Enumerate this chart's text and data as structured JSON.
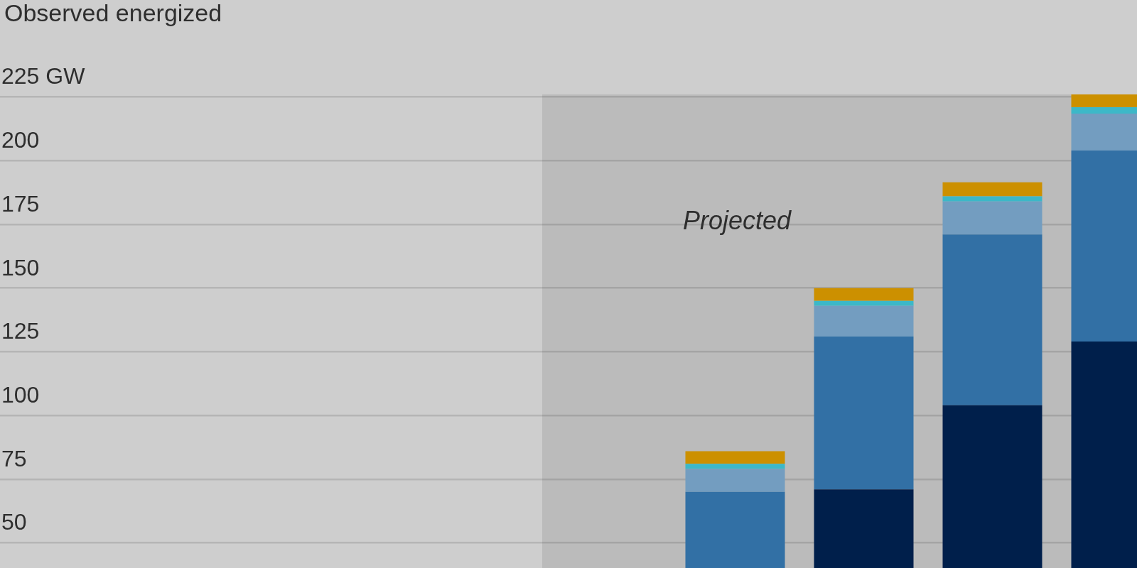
{
  "chart_data": {
    "type": "bar",
    "title": "Observed energized",
    "categories": [
      null,
      null,
      null,
      null,
      null,
      null,
      null,
      null,
      null,
      null
    ],
    "stacked": true,
    "series": [
      {
        "color": "#001f4b",
        "values": [
          null,
          null,
          null,
          null,
          null,
          null,
          null,
          71,
          104,
          129
        ]
      },
      {
        "color": "#3270a5",
        "values": [
          null,
          null,
          null,
          null,
          null,
          null,
          70,
          60,
          67,
          75
        ]
      },
      {
        "color": "#739dc0",
        "values": [
          null,
          null,
          null,
          null,
          null,
          null,
          9,
          12,
          13,
          14.5
        ]
      },
      {
        "color": "#3cb8c8",
        "values": [
          null,
          null,
          null,
          null,
          null,
          null,
          2,
          2,
          2,
          2.5
        ]
      },
      {
        "color": "#cc9000",
        "values": [
          null,
          null,
          null,
          null,
          null,
          null,
          5,
          5,
          5.5,
          5
        ]
      }
    ],
    "ylim": [
      0,
      226
    ],
    "yticks": [
      {
        "value": 225,
        "label": "225 GW"
      },
      200,
      175,
      150,
      125,
      100,
      75,
      50
    ],
    "grid": "y",
    "tick_labels": "y",
    "annotations": [
      "Projected"
    ]
  }
}
